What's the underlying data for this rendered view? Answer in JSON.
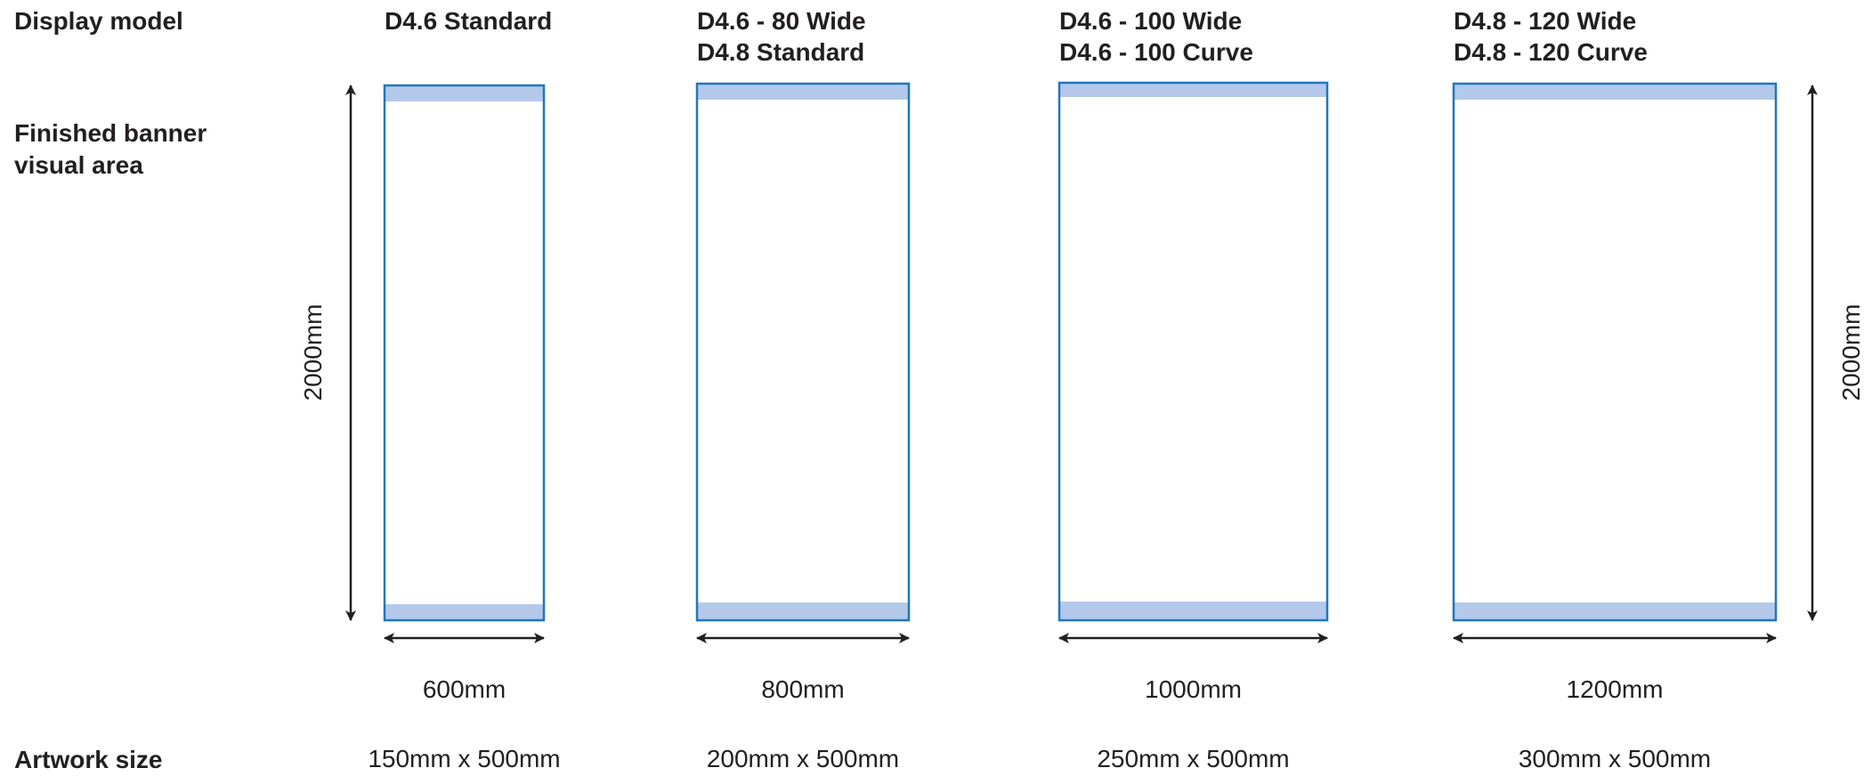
{
  "labels": {
    "display_model": "Display model",
    "finished_area_line1": "Finished banner",
    "finished_area_line2": "visual area",
    "artwork_size": "Artwork size"
  },
  "height_dimension": "2000mm",
  "colors": {
    "frame": "#1f77bd",
    "band": "#b4c9ea",
    "arrow": "#231f20",
    "text": "#231f20"
  },
  "models": [
    {
      "title_lines": [
        "D4.6 Standard"
      ],
      "width_label": "600mm",
      "artwork": "150mm x 500mm"
    },
    {
      "title_lines": [
        "D4.6 - 80 Wide",
        "D4.8 Standard"
      ],
      "width_label": "800mm",
      "artwork": "200mm x 500mm"
    },
    {
      "title_lines": [
        "D4.6 - 100 Wide",
        "D4.6 - 100 Curve"
      ],
      "width_label": "1000mm",
      "artwork": "250mm x 500mm"
    },
    {
      "title_lines": [
        "D4.8 - 120 Wide",
        "D4.8 - 120 Curve"
      ],
      "width_label": "1200mm",
      "artwork": "300mm x 500mm"
    }
  ]
}
